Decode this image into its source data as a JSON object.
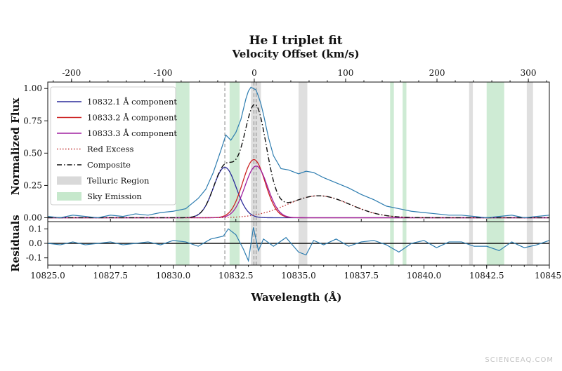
{
  "watermark": "SCIENCEAQ.COM",
  "chart_data": {
    "type": "line",
    "title": "He I triplet fit",
    "top_axis": {
      "label": "Velocity Offset (km/s)",
      "ticks": [
        -200,
        -100,
        0,
        100,
        200,
        300
      ],
      "tick_labels": [
        "-200",
        "-100",
        "0",
        "100",
        "200",
        "300"
      ],
      "xlim": [
        -226,
        323
      ]
    },
    "main_panel": {
      "ylabel": "Normalized Flux",
      "ylim": [
        -0.03,
        1.05
      ],
      "yticks": [
        0.0,
        0.25,
        0.5,
        0.75,
        1.0
      ],
      "ytick_labels": [
        "0.00",
        "0.25",
        "0.50",
        "0.75",
        "1.00"
      ],
      "series": [
        {
          "name": "10832.1 Å component",
          "color": "#2b2b9a",
          "style": "solid",
          "center": 10832.06,
          "amplitude": 0.39,
          "sigma": 0.45
        },
        {
          "name": "10833.2 Å component",
          "color": "#cc2222",
          "style": "solid",
          "center": 10833.22,
          "amplitude": 0.45,
          "sigma": 0.45
        },
        {
          "name": "10833.3 Å component",
          "color": "#a020a0",
          "style": "solid",
          "center": 10833.31,
          "amplitude": 0.4,
          "sigma": 0.45
        },
        {
          "name": "Red Excess",
          "color": "#c03030",
          "style": "dotted",
          "center": 10835.8,
          "amplitude": 0.17,
          "sigma": 1.25
        },
        {
          "name": "Composite",
          "color": "#111111",
          "style": "dashdot"
        }
      ],
      "observed": {
        "color": "#2e7db0",
        "x": [
          10825.0,
          10825.5,
          10826.0,
          10826.5,
          10827.0,
          10827.5,
          10828.0,
          10828.5,
          10829.0,
          10829.5,
          10830.0,
          10830.5,
          10831.0,
          10831.3,
          10831.6,
          10831.9,
          10832.1,
          10832.3,
          10832.5,
          10832.7,
          10832.9,
          10833.0,
          10833.1,
          10833.2,
          10833.3,
          10833.4,
          10833.5,
          10833.6,
          10833.8,
          10834.0,
          10834.3,
          10834.6,
          10835.0,
          10835.3,
          10835.6,
          10836.0,
          10836.5,
          10837.0,
          10837.5,
          10838.0,
          10838.5,
          10839.0,
          10839.5,
          10840.0,
          10840.5,
          10841.0,
          10841.5,
          10842.0,
          10842.5,
          10843.0,
          10843.5,
          10844.0,
          10844.5,
          10845.0
        ],
        "y": [
          0.01,
          0.0,
          0.02,
          0.01,
          0.0,
          0.02,
          0.01,
          0.03,
          0.02,
          0.04,
          0.05,
          0.07,
          0.15,
          0.22,
          0.35,
          0.52,
          0.64,
          0.6,
          0.66,
          0.76,
          0.92,
          0.98,
          1.01,
          1.0,
          0.99,
          0.94,
          0.88,
          0.8,
          0.62,
          0.48,
          0.38,
          0.37,
          0.34,
          0.36,
          0.35,
          0.31,
          0.27,
          0.23,
          0.18,
          0.14,
          0.09,
          0.07,
          0.05,
          0.04,
          0.03,
          0.02,
          0.02,
          0.01,
          0.0,
          0.01,
          0.02,
          0.0,
          0.01,
          0.02
        ]
      },
      "vlines": [
        10832.06,
        10833.22,
        10833.31
      ],
      "legend": {
        "position": "upper-left",
        "entries": [
          {
            "label": "10832.1 Å component",
            "kind": "line",
            "color": "#2b2b9a",
            "style": "solid"
          },
          {
            "label": "10833.2 Å component",
            "kind": "line",
            "color": "#cc2222",
            "style": "solid"
          },
          {
            "label": "10833.3 Å component",
            "kind": "line",
            "color": "#a020a0",
            "style": "solid"
          },
          {
            "label": "Red Excess",
            "kind": "line",
            "color": "#c03030",
            "style": "dotted"
          },
          {
            "label": "Composite",
            "kind": "line",
            "color": "#111111",
            "style": "dashdot"
          },
          {
            "label": "Telluric Region",
            "kind": "patch",
            "color": "#d9d9d9"
          },
          {
            "label": "Sky Emission",
            "kind": "patch",
            "color": "#c6e8cc"
          }
        ]
      }
    },
    "residual_panel": {
      "ylabel": "Residuals",
      "ylim": [
        -0.15,
        0.15
      ],
      "yticks": [
        0.1,
        0.0,
        -0.1
      ],
      "ytick_labels": [
        "0.1",
        "0.0",
        "-0.1"
      ],
      "x": [
        10825.0,
        10825.5,
        10826.0,
        10826.5,
        10827.0,
        10827.5,
        10828.0,
        10828.5,
        10829.0,
        10829.5,
        10830.0,
        10830.5,
        10831.0,
        10831.5,
        10832.0,
        10832.2,
        10832.5,
        10832.8,
        10833.0,
        10833.2,
        10833.4,
        10833.6,
        10834.0,
        10834.5,
        10835.0,
        10835.3,
        10835.6,
        10836.0,
        10836.5,
        10837.0,
        10837.5,
        10838.0,
        10838.5,
        10839.0,
        10839.5,
        10840.0,
        10840.5,
        10841.0,
        10841.5,
        10842.0,
        10842.5,
        10843.0,
        10843.5,
        10844.0,
        10844.5,
        10845.0
      ],
      "y": [
        0.0,
        -0.01,
        0.01,
        -0.01,
        0.0,
        0.01,
        -0.01,
        0.0,
        0.01,
        -0.01,
        0.02,
        0.01,
        -0.02,
        0.03,
        0.05,
        0.1,
        0.06,
        -0.04,
        -0.12,
        0.11,
        -0.05,
        0.03,
        -0.02,
        0.04,
        -0.06,
        -0.08,
        0.02,
        -0.01,
        0.03,
        -0.02,
        0.01,
        0.02,
        -0.01,
        -0.06,
        0.0,
        0.02,
        -0.03,
        0.01,
        0.01,
        -0.02,
        -0.02,
        -0.05,
        0.01,
        -0.03,
        -0.01,
        0.02
      ]
    },
    "xaxis": {
      "label": "Wavelength (Å)",
      "xlim": [
        10825.0,
        10845.0
      ],
      "ticks": [
        10825.0,
        10827.5,
        10830.0,
        10832.5,
        10835.0,
        10837.5,
        10840.0,
        10842.5,
        10845.0
      ],
      "tick_labels": [
        "10825.0",
        "10827.5",
        "10830.0",
        "10832.5",
        "10835.0",
        "10837.5",
        "10840.0",
        "10842.5",
        "10845."
      ]
    },
    "sky_emission_bands": [
      [
        10830.1,
        10830.65
      ],
      [
        10832.25,
        10832.65
      ],
      [
        10838.65,
        10838.8
      ],
      [
        10839.15,
        10839.3
      ],
      [
        10842.5,
        10843.2
      ]
    ],
    "telluric_bands": [
      [
        10833.1,
        10833.5
      ],
      [
        10835.0,
        10835.35
      ],
      [
        10841.8,
        10841.95
      ],
      [
        10844.1,
        10844.35
      ]
    ]
  }
}
